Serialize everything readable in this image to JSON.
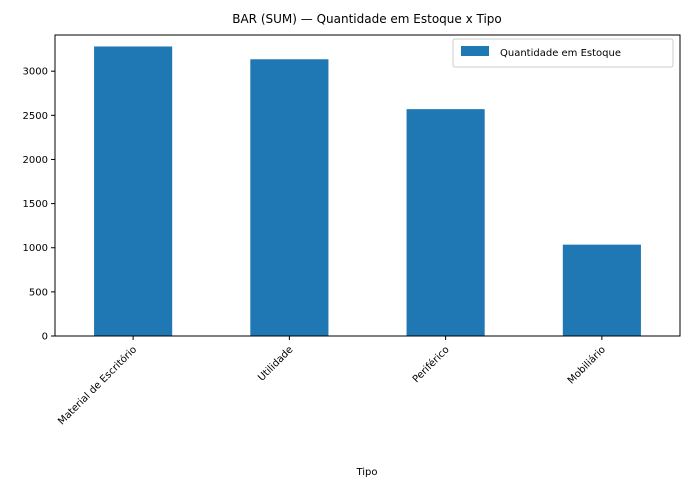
{
  "chart_data": {
    "type": "bar",
    "title": "BAR (SUM) — Quantidade em Estoque x Tipo",
    "xlabel": "Tipo",
    "ylabel": "",
    "categories": [
      "Material de Escritório",
      "Utilidade",
      "Periférico",
      "Mobiliário"
    ],
    "series": [
      {
        "name": "Quantidade em Estoque",
        "values": [
          3280,
          3135,
          2570,
          1035
        ],
        "color": "#1f77b4"
      }
    ],
    "ylim": [
      0,
      3410
    ],
    "yticks": [
      0,
      500,
      1000,
      1500,
      2000,
      2500,
      3000
    ],
    "grid": false,
    "legend_position": "top-right"
  }
}
